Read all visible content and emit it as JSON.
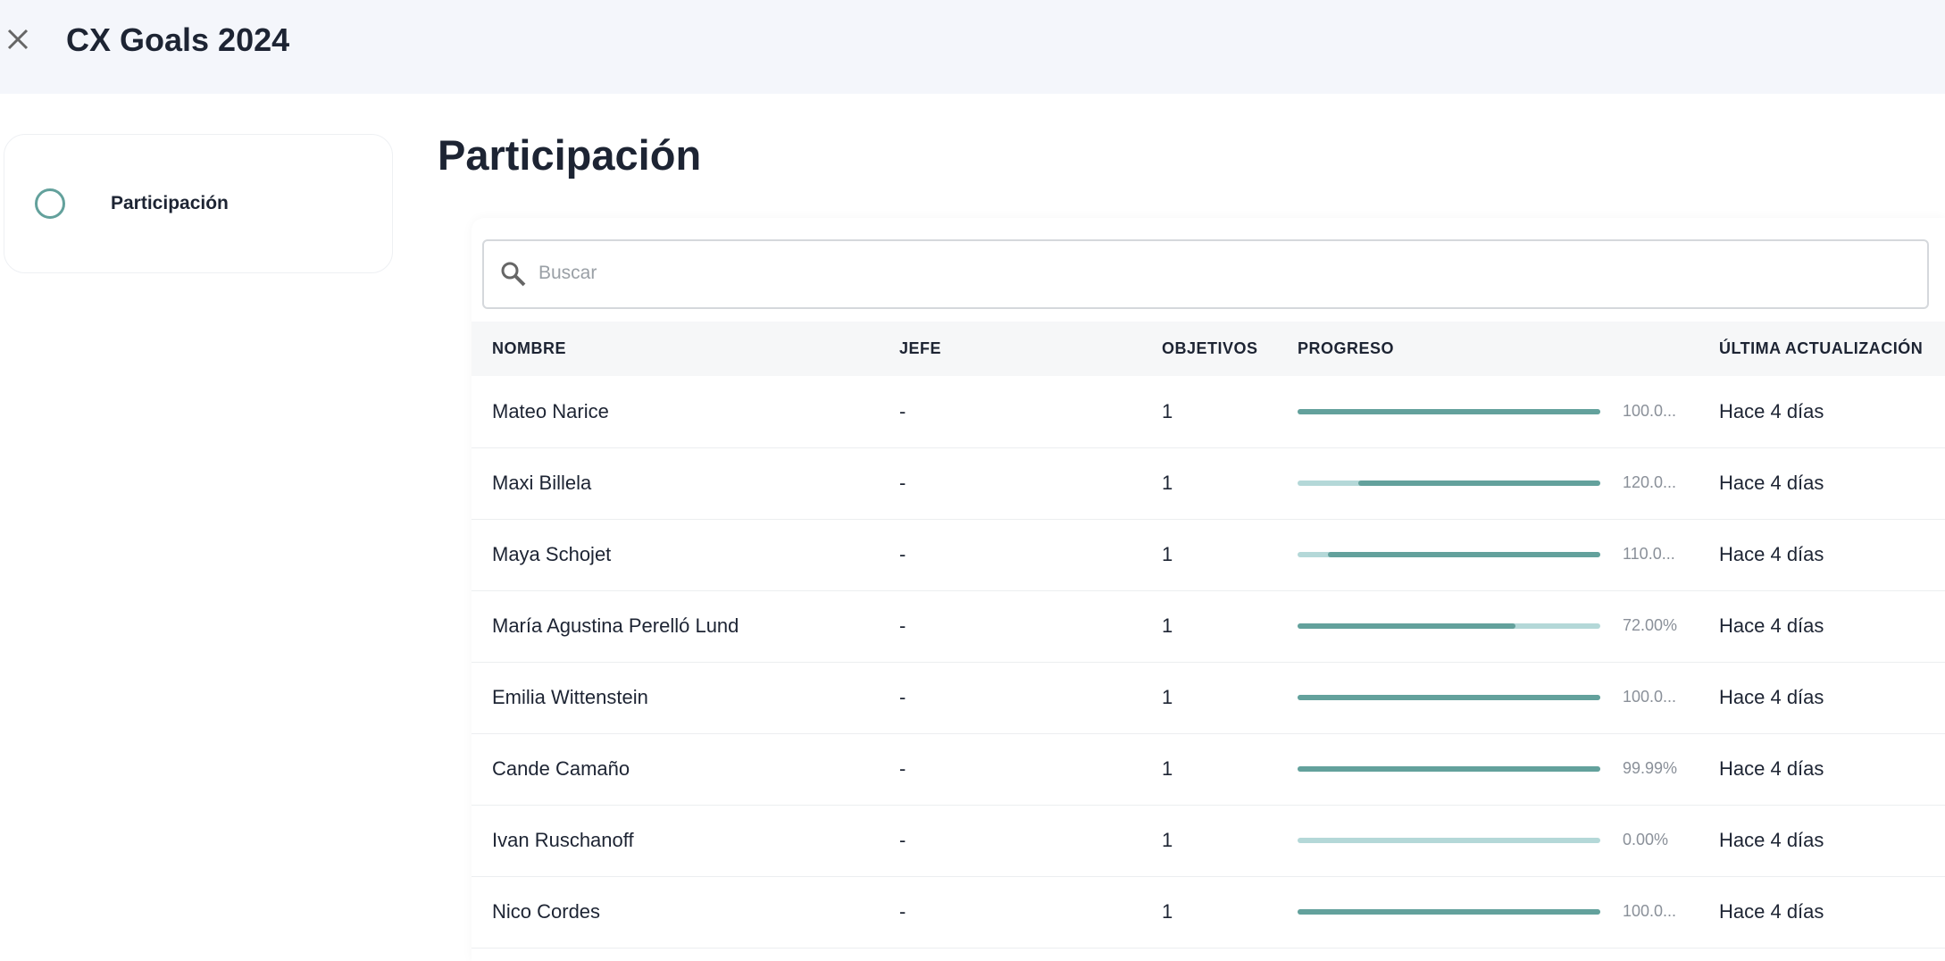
{
  "header": {
    "title": "CX Goals 2024"
  },
  "sidebar": {
    "items": [
      "Participación"
    ]
  },
  "section": {
    "title": "Participación"
  },
  "search": {
    "placeholder": "Buscar"
  },
  "table": {
    "columns": [
      "NOMBRE",
      "JEFE",
      "OBJETIVOS",
      "PROGRESO",
      "ÚLTIMA ACTUALIZACIÓN"
    ],
    "rows": [
      {
        "name": "Mateo Narice",
        "boss": "-",
        "goals": 1,
        "progress": 100,
        "progress_label": "100.0...",
        "updated": "Hace 4 días"
      },
      {
        "name": "Maxi Billela",
        "boss": "-",
        "goals": 1,
        "progress": 120,
        "progress_label": "120.0...",
        "updated": "Hace 4 días"
      },
      {
        "name": "Maya Schojet",
        "boss": "-",
        "goals": 1,
        "progress": 110,
        "progress_label": "110.0...",
        "updated": "Hace 4 días"
      },
      {
        "name": "María Agustina Perelló Lund",
        "boss": "-",
        "goals": 1,
        "progress": 72,
        "progress_label": "72.00%",
        "updated": "Hace 4 días"
      },
      {
        "name": "Emilia Wittenstein",
        "boss": "-",
        "goals": 1,
        "progress": 100,
        "progress_label": "100.0...",
        "updated": "Hace 4 días"
      },
      {
        "name": "Cande Camaño",
        "boss": "-",
        "goals": 1,
        "progress": 99.99,
        "progress_label": "99.99%",
        "updated": "Hace 4 días"
      },
      {
        "name": "Ivan Ruschanoff",
        "boss": "-",
        "goals": 1,
        "progress": 0,
        "progress_label": "0.00%",
        "updated": "Hace 4 días"
      },
      {
        "name": "Nico Cordes",
        "boss": "-",
        "goals": 1,
        "progress": 100,
        "progress_label": "100.0...",
        "updated": "Hace 4 días"
      }
    ]
  }
}
